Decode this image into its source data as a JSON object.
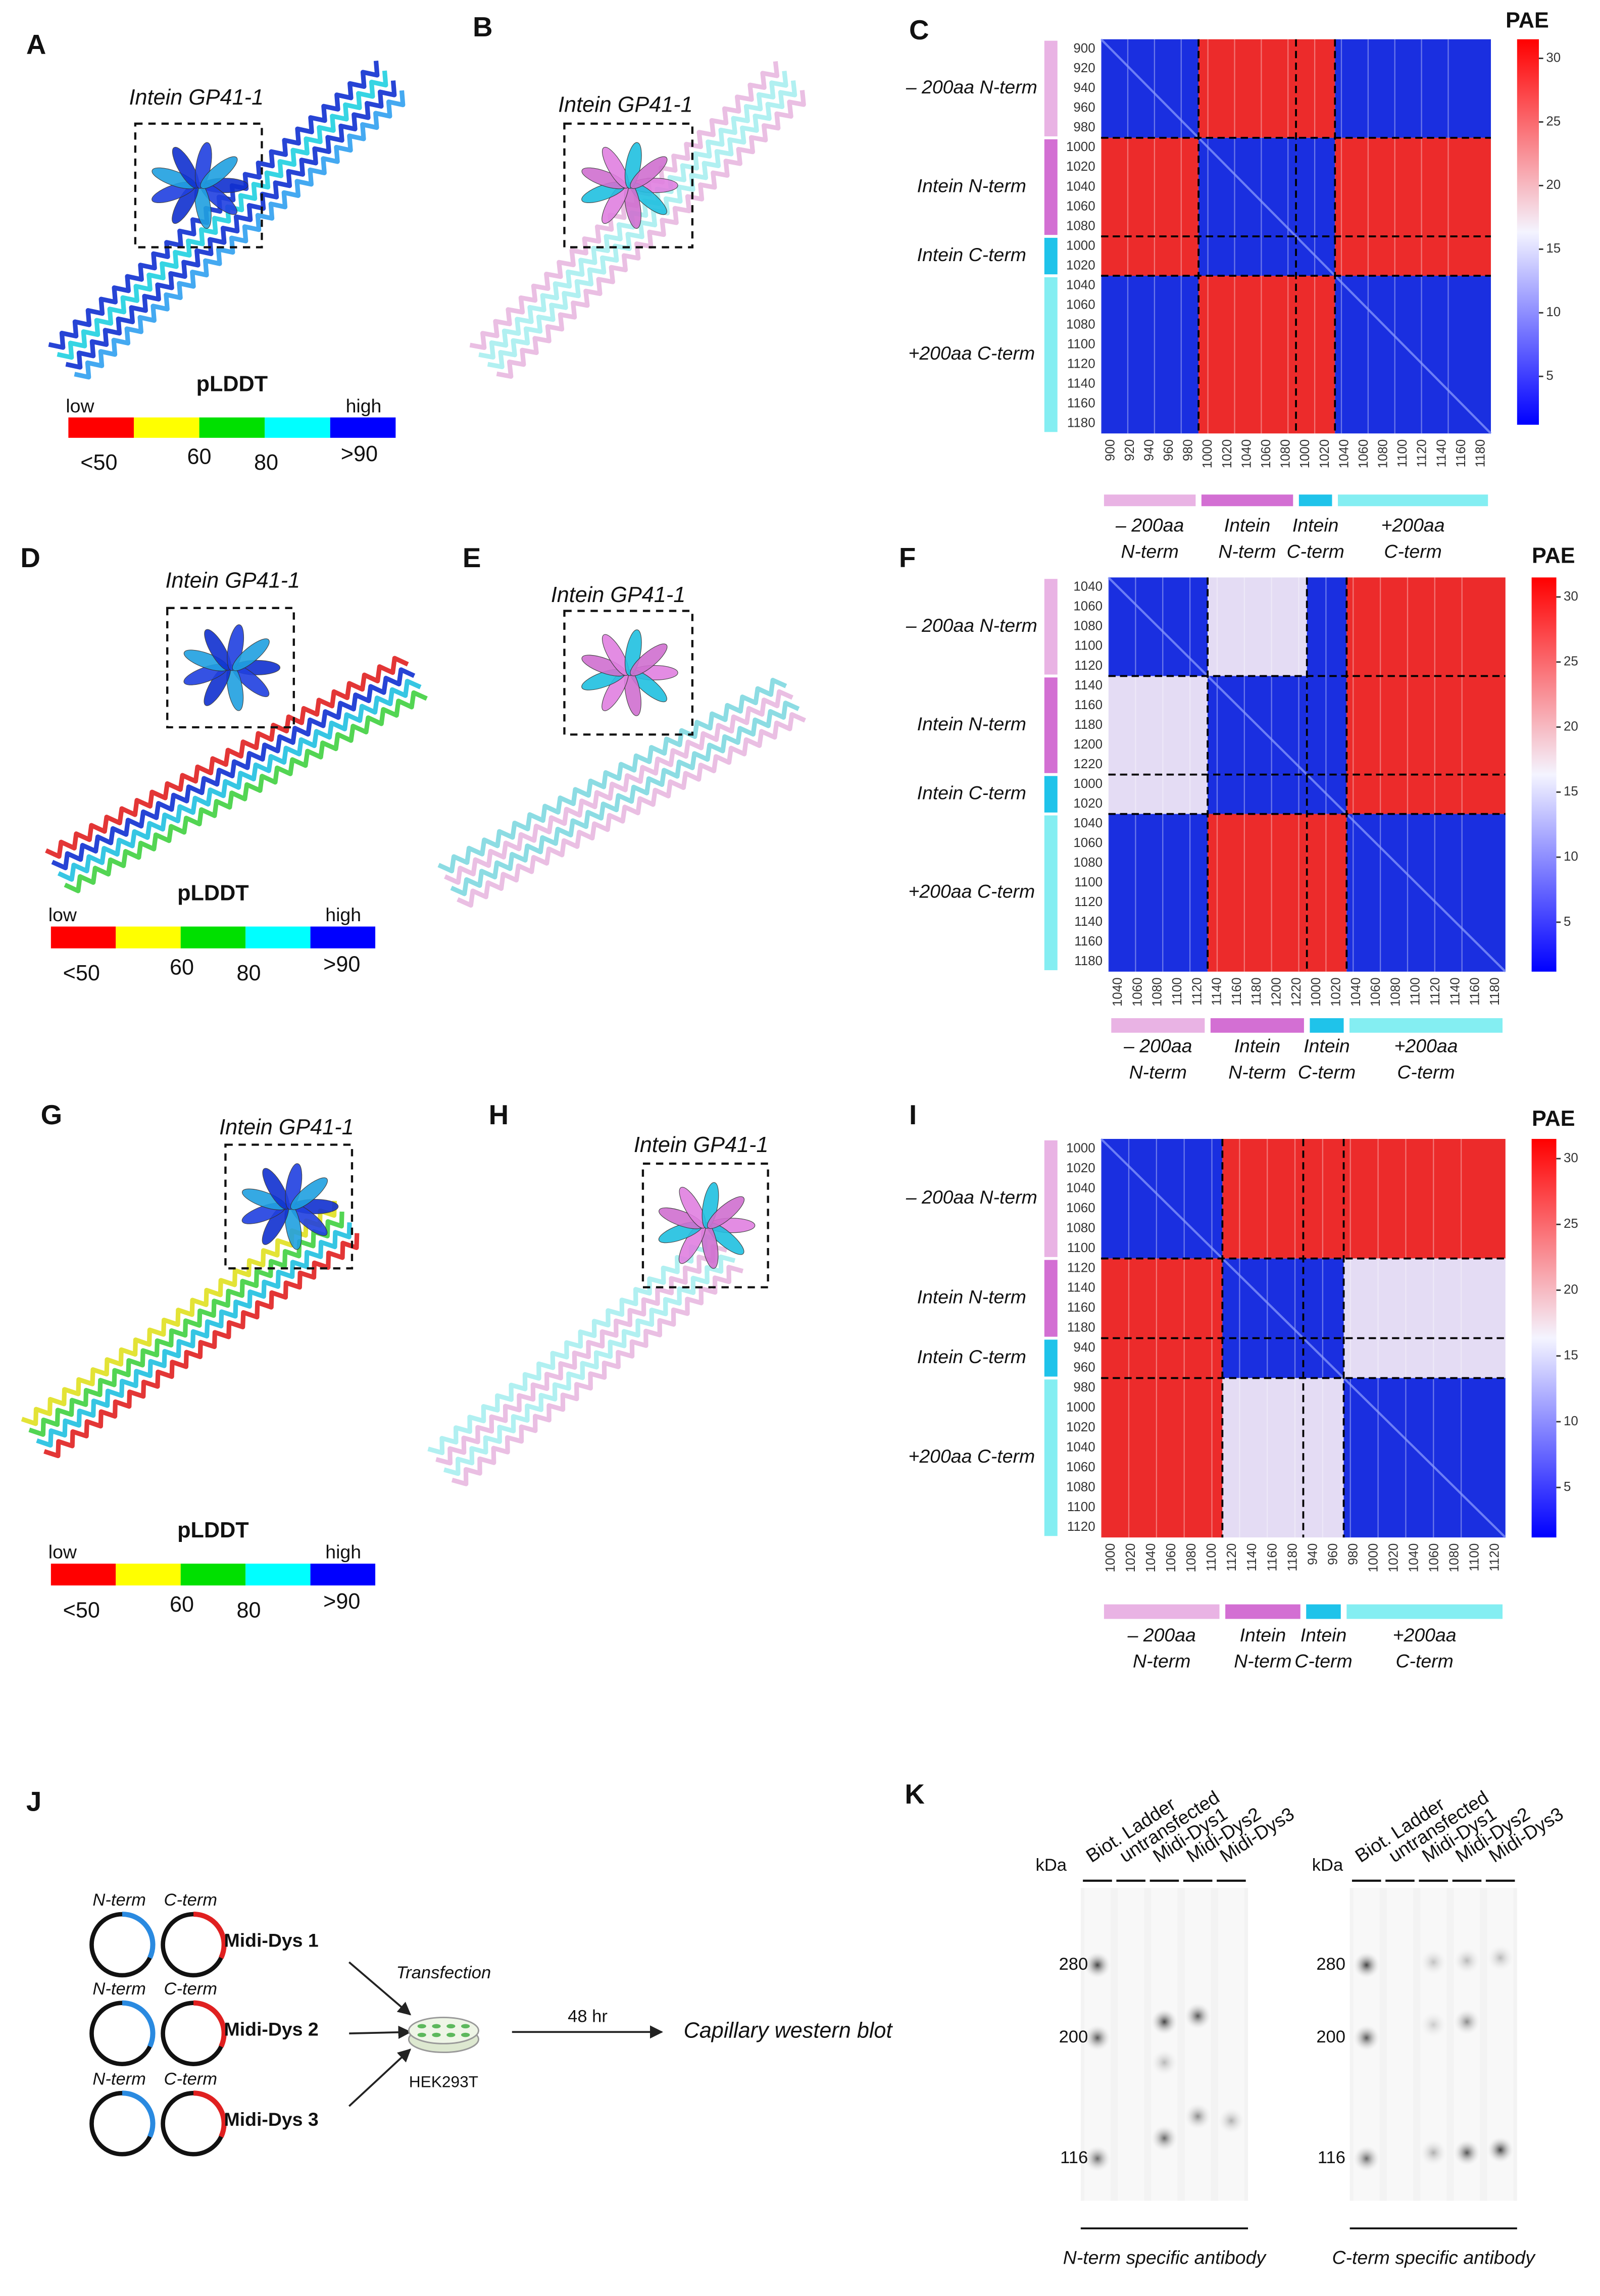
{
  "panels": {
    "letters": [
      "A",
      "B",
      "C",
      "D",
      "E",
      "F",
      "G",
      "H",
      "I",
      "J",
      "K"
    ],
    "rows": [
      {
        "structure_labels": [
          "Intein GP41-1",
          "Intein GP41-1"
        ],
        "plddt": {
          "title": "pLDDT",
          "low": "low",
          "high": "high",
          "ticks": [
            "<50",
            "60",
            "80",
            ">90"
          ]
        },
        "pae": {
          "title": "PAE",
          "clim": [
            1.2,
            31.5
          ],
          "cticks": [
            5,
            10,
            15,
            20,
            25,
            30
          ],
          "regions": [
            {
              "name": "– 200aa N-term",
              "axis_label": [
                "– 200aa",
                "N-term"
              ],
              "color": "#e9b3e4",
              "ticks": [
                900,
                920,
                940,
                960,
                980
              ]
            },
            {
              "name": "Intein N-term",
              "axis_label": [
                "Intein",
                "N-term"
              ],
              "color": "#d36fd3",
              "ticks": [
                1000,
                1020,
                1040,
                1060,
                1080
              ]
            },
            {
              "name": "Intein C-term",
              "axis_label": [
                "Intein",
                "C-term"
              ],
              "color": "#1fc3ea",
              "ticks": [
                1000,
                1020
              ]
            },
            {
              "name": "+200aa C-term",
              "axis_label": [
                "+200aa",
                "C-term"
              ],
              "color": "#84eef2",
              "ticks": [
                1040,
                1060,
                1080,
                1100,
                1120,
                1140,
                1160,
                1180
              ]
            }
          ]
        }
      },
      {
        "structure_labels": [
          "Intein GP41-1",
          "Intein GP41-1"
        ],
        "plddt": {
          "title": "pLDDT",
          "low": "low",
          "high": "high",
          "ticks": [
            "<50",
            "60",
            "80",
            ">90"
          ]
        },
        "pae": {
          "title": "PAE",
          "clim": [
            1.2,
            31.5
          ],
          "cticks": [
            5,
            10,
            15,
            20,
            25,
            30
          ],
          "regions": [
            {
              "name": "– 200aa N-term",
              "axis_label": [
                "– 200aa",
                "N-term"
              ],
              "color": "#e9b3e4",
              "ticks": [
                1040,
                1060,
                1080,
                1100,
                1120
              ]
            },
            {
              "name": "Intein N-term",
              "axis_label": [
                "Intein",
                "N-term"
              ],
              "color": "#d36fd3",
              "ticks": [
                1140,
                1160,
                1180,
                1200,
                1220
              ]
            },
            {
              "name": "Intein C-term",
              "axis_label": [
                "Intein",
                "C-term"
              ],
              "color": "#1fc3ea",
              "ticks": [
                1000,
                1020
              ]
            },
            {
              "name": "+200aa C-term",
              "axis_label": [
                "+200aa",
                "C-term"
              ],
              "color": "#84eef2",
              "ticks": [
                1040,
                1060,
                1080,
                1100,
                1120,
                1140,
                1160,
                1180
              ]
            }
          ]
        }
      },
      {
        "structure_labels": [
          "Intein GP41-1",
          "Intein GP41-1"
        ],
        "plddt": {
          "title": "pLDDT",
          "low": "low",
          "high": "high",
          "ticks": [
            "<50",
            "60",
            "80",
            ">90"
          ]
        },
        "pae": {
          "title": "PAE",
          "clim": [
            1.2,
            31.5
          ],
          "cticks": [
            5,
            10,
            15,
            20,
            25,
            30
          ],
          "regions": [
            {
              "name": "– 200aa N-term",
              "axis_label": [
                "– 200aa",
                "N-term"
              ],
              "color": "#e9b3e4",
              "ticks": [
                1000,
                1020,
                1040,
                1060,
                1080,
                1100
              ]
            },
            {
              "name": "Intein N-term",
              "axis_label": [
                "Intein",
                "N-term"
              ],
              "color": "#d36fd3",
              "ticks": [
                1120,
                1140,
                1160,
                1180
              ]
            },
            {
              "name": "Intein C-term",
              "axis_label": [
                "Intein",
                "C-term"
              ],
              "color": "#1fc3ea",
              "ticks": [
                940,
                960
              ]
            },
            {
              "name": "+200aa C-term",
              "axis_label": [
                "+200aa",
                "C-term"
              ],
              "color": "#84eef2",
              "ticks": [
                980,
                1000,
                1020,
                1040,
                1060,
                1080,
                1100,
                1120
              ]
            }
          ]
        }
      }
    ],
    "workflow": {
      "plasmids": [
        {
          "n": "N-term",
          "c": "C-term",
          "name": "Midi-Dys 1"
        },
        {
          "n": "N-term",
          "c": "C-term",
          "name": "Midi-Dys 2"
        },
        {
          "n": "N-term",
          "c": "C-term",
          "name": "Midi-Dys 3"
        }
      ],
      "step": "Transfection",
      "cells": "HEK293T",
      "time": "48 hr",
      "readout": "Capillary western blot"
    },
    "blots": {
      "unit": "kDa",
      "markers": [
        280,
        200,
        116
      ],
      "panels": [
        {
          "lanes": [
            "Biot. Ladder",
            "untransfected",
            "Midi-Dys1",
            "Midi-Dys2",
            "Midi-Dys3"
          ],
          "antibody": "N-term specific antibody"
        },
        {
          "lanes": [
            "Biot. Ladder",
            "untransfected",
            "Midi-Dys1",
            "Midi-Dys2",
            "Midi-Dys3"
          ],
          "antibody": "C-term specific antibody"
        }
      ]
    }
  }
}
